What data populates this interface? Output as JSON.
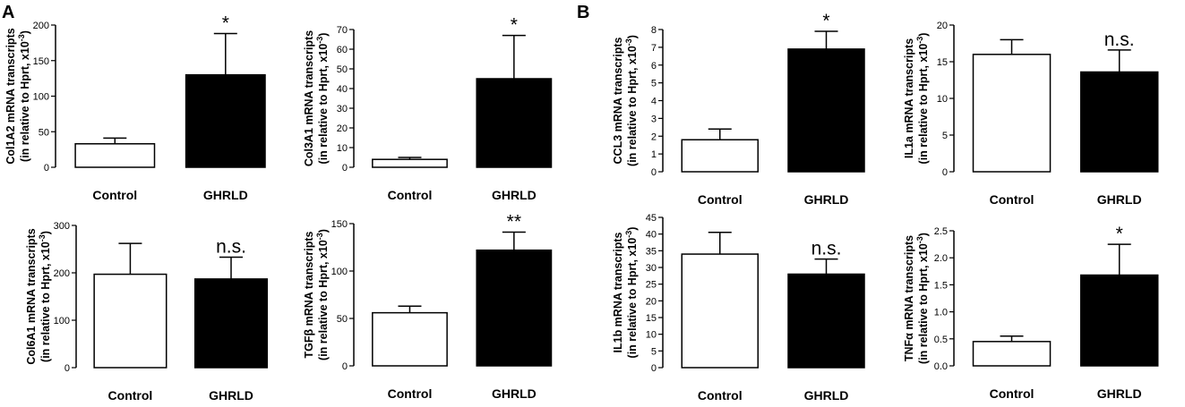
{
  "panel_labels": [
    "A",
    "B"
  ],
  "chart_data": [
    {
      "type": "bar",
      "panel": "A",
      "title": "",
      "categories": [
        "Control",
        "GHRLD"
      ],
      "values": [
        33,
        130
      ],
      "errors": [
        8,
        58
      ],
      "significance": [
        "",
        "*"
      ],
      "ylabel_line1": "Col1A2 mRNA transcripts",
      "ylabel_line2": "(in relative to Hprt, x10",
      "ylabel_exp": "-3",
      "ylabel_close": ")",
      "ylim": [
        0,
        200
      ],
      "yticks": [
        0,
        50,
        100,
        150,
        200
      ],
      "fills": [
        "#ffffff",
        "#000000"
      ]
    },
    {
      "type": "bar",
      "panel": "A",
      "title": "",
      "categories": [
        "Control",
        "GHRLD"
      ],
      "values": [
        4,
        45
      ],
      "errors": [
        1,
        22
      ],
      "significance": [
        "",
        "*"
      ],
      "ylabel_line1": "Col3A1 mRNA transcripts",
      "ylabel_line2": "(in relative to Hprt, x10",
      "ylabel_exp": "-3",
      "ylabel_close": ")",
      "ylim": [
        0,
        70
      ],
      "yticks": [
        0,
        10,
        20,
        30,
        40,
        50,
        60,
        70
      ],
      "fills": [
        "#ffffff",
        "#000000"
      ]
    },
    {
      "type": "bar",
      "panel": "B",
      "title": "",
      "categories": [
        "Control",
        "GHRLD"
      ],
      "values": [
        1.8,
        6.9
      ],
      "errors": [
        0.6,
        1.0
      ],
      "significance": [
        "",
        "*"
      ],
      "ylabel_line1": "CCL3 mRNA transcripts",
      "ylabel_line2": "(in relative to Hprt, x10",
      "ylabel_exp": "-3",
      "ylabel_close": ")",
      "ylim": [
        0,
        8
      ],
      "yticks": [
        0,
        1,
        2,
        3,
        4,
        5,
        6,
        7,
        8
      ],
      "fills": [
        "#ffffff",
        "#000000"
      ]
    },
    {
      "type": "bar",
      "panel": "B",
      "title": "",
      "categories": [
        "Control",
        "GHRLD"
      ],
      "values": [
        16,
        13.6
      ],
      "errors": [
        2.0,
        3.0
      ],
      "significance": [
        "",
        "n.s."
      ],
      "ylabel_line1": "IL1a mRNA transcripts",
      "ylabel_line2": "(in relative to Hprt, x10",
      "ylabel_exp": "-3",
      "ylabel_close": ")",
      "ylim": [
        0,
        20
      ],
      "yticks": [
        0,
        5,
        10,
        15,
        20
      ],
      "fills": [
        "#ffffff",
        "#000000"
      ]
    },
    {
      "type": "bar",
      "panel": "A",
      "title": "",
      "categories": [
        "Control",
        "GHRLD"
      ],
      "values": [
        197,
        187
      ],
      "errors": [
        65,
        46
      ],
      "significance": [
        "",
        "n.s."
      ],
      "ylabel_line1": "Col6A1 mRNA transcripts",
      "ylabel_line2": "(in relative to Hprt, x10",
      "ylabel_exp": "-3",
      "ylabel_close": ")",
      "ylim": [
        0,
        300
      ],
      "yticks": [
        0,
        100,
        200,
        300
      ],
      "fills": [
        "#ffffff",
        "#000000"
      ]
    },
    {
      "type": "bar",
      "panel": "A",
      "title": "",
      "categories": [
        "Control",
        "GHRLD"
      ],
      "values": [
        56,
        122
      ],
      "errors": [
        7,
        19
      ],
      "significance": [
        "",
        "**"
      ],
      "ylabel_line1": "TGFβ mRNA transcripts",
      "ylabel_line2": "(in relative to Hprt, x10",
      "ylabel_exp": "-3",
      "ylabel_close": ")",
      "ylim": [
        0,
        150
      ],
      "yticks": [
        0,
        50,
        100,
        150
      ],
      "fills": [
        "#ffffff",
        "#000000"
      ]
    },
    {
      "type": "bar",
      "panel": "B",
      "title": "",
      "categories": [
        "Control",
        "GHRLD"
      ],
      "values": [
        34,
        28
      ],
      "errors": [
        6.5,
        4.5
      ],
      "significance": [
        "",
        "n.s."
      ],
      "ylabel_line1": "IL1b mRNA transcripts",
      "ylabel_line2": "(in relative to Hprt, x10",
      "ylabel_exp": "-3",
      "ylabel_close": ")",
      "ylim": [
        0,
        45
      ],
      "yticks": [
        0,
        5,
        10,
        15,
        20,
        25,
        30,
        35,
        40,
        45
      ],
      "fills": [
        "#ffffff",
        "#000000"
      ]
    },
    {
      "type": "bar",
      "panel": "B",
      "title": "",
      "categories": [
        "Control",
        "GHRLD"
      ],
      "values": [
        0.45,
        1.68
      ],
      "errors": [
        0.1,
        0.57
      ],
      "significance": [
        "",
        "*"
      ],
      "ylabel_line1": "TNFα mRNA transcripts",
      "ylabel_line2": "(in relative to Hprt, x10",
      "ylabel_exp": "-3",
      "ylabel_close": ")",
      "ylim": [
        0,
        2.5
      ],
      "yticks": [
        0.0,
        0.5,
        1.0,
        1.5,
        2.0,
        2.5
      ],
      "fills": [
        "#ffffff",
        "#000000"
      ]
    }
  ]
}
